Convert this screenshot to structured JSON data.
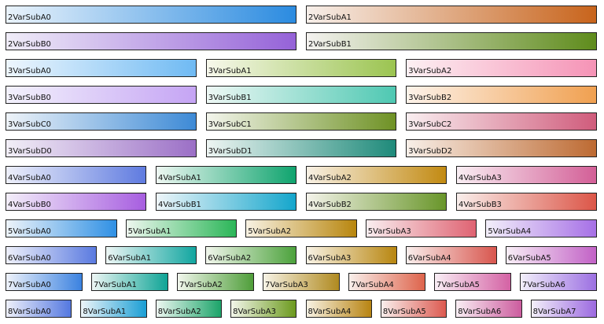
{
  "colormaps": [
    {
      "group": 2,
      "rows": [
        {
          "row": "A",
          "items": [
            {
              "label": "2VarSubA0",
              "colors": [
                "#eaf3fb",
                "#2b8be0"
              ]
            },
            {
              "label": "2VarSubA1",
              "colors": [
                "#f7efea",
                "#c8641c"
              ]
            }
          ]
        },
        {
          "row": "B",
          "items": [
            {
              "label": "2VarSubB0",
              "colors": [
                "#f0edf8",
                "#9562d8"
              ]
            },
            {
              "label": "2VarSubB1",
              "colors": [
                "#f4f2f0",
                "#5f8c1c"
              ]
            }
          ]
        }
      ]
    },
    {
      "group": 3,
      "rows": [
        {
          "row": "A",
          "items": [
            {
              "label": "3VarSubA0",
              "colors": [
                "#eef6fd",
                "#6fbaf3"
              ]
            },
            {
              "label": "3VarSubA1",
              "colors": [
                "#f7f8ec",
                "#9bc450"
              ]
            },
            {
              "label": "3VarSubA2",
              "colors": [
                "#fdf0f3",
                "#f593b6"
              ]
            }
          ]
        },
        {
          "row": "B",
          "items": [
            {
              "label": "3VarSubB0",
              "colors": [
                "#f3f2fc",
                "#c5a4f4"
              ]
            },
            {
              "label": "3VarSubB1",
              "colors": [
                "#eef8f5",
                "#4ec8b2"
              ]
            },
            {
              "label": "3VarSubB2",
              "colors": [
                "#fdf3ea",
                "#f0a050"
              ]
            }
          ]
        },
        {
          "row": "C",
          "items": [
            {
              "label": "3VarSubC0",
              "colors": [
                "#eef3f8",
                "#3d8ad6"
              ]
            },
            {
              "label": "3VarSubC1",
              "colors": [
                "#f3f5ec",
                "#6f9225"
              ]
            },
            {
              "label": "3VarSubC2",
              "colors": [
                "#f9eef0",
                "#d05c7c"
              ]
            }
          ]
        },
        {
          "row": "D",
          "items": [
            {
              "label": "3VarSubD0",
              "colors": [
                "#f2eff7",
                "#9b6fc6"
              ]
            },
            {
              "label": "3VarSubD1",
              "colors": [
                "#eef5f3",
                "#1e8a7a"
              ]
            },
            {
              "label": "3VarSubD2",
              "colors": [
                "#f8efe8",
                "#bd6a32"
              ]
            }
          ]
        }
      ]
    },
    {
      "group": 4,
      "rows": [
        {
          "row": "A",
          "items": [
            {
              "label": "4VarSubA0",
              "colors": [
                "#eef0fa",
                "#5f7be0"
              ]
            },
            {
              "label": "4VarSubA1",
              "colors": [
                "#eef7f2",
                "#0fa46e"
              ]
            },
            {
              "label": "4VarSubA2",
              "colors": [
                "#f8f1e5",
                "#c28a12"
              ]
            },
            {
              "label": "4VarSubA3",
              "colors": [
                "#f9eef3",
                "#d35f97"
              ]
            }
          ]
        },
        {
          "row": "B",
          "items": [
            {
              "label": "4VarSubB0",
              "colors": [
                "#f3eef9",
                "#a75ee0"
              ]
            },
            {
              "label": "4VarSubB1",
              "colors": [
                "#eef5f9",
                "#14a6cc"
              ]
            },
            {
              "label": "4VarSubB2",
              "colors": [
                "#f4f3ea",
                "#69962a"
              ]
            },
            {
              "label": "4VarSubB3",
              "colors": [
                "#f9eeeb",
                "#dc5648"
              ]
            }
          ]
        }
      ]
    },
    {
      "group": 5,
      "rows": [
        {
          "row": "A",
          "items": [
            {
              "label": "5VarSubA0",
              "colors": [
                "#eef4fa",
                "#2f90e4"
              ]
            },
            {
              "label": "5VarSubA1",
              "colors": [
                "#eef7ef",
                "#2bb658"
              ]
            },
            {
              "label": "5VarSubA2",
              "colors": [
                "#f8f2e3",
                "#b8860e"
              ]
            },
            {
              "label": "5VarSubA3",
              "colors": [
                "#f9eef0",
                "#df6372"
              ]
            },
            {
              "label": "5VarSubA4",
              "colors": [
                "#f3effa",
                "#a670e6"
              ]
            }
          ]
        }
      ]
    },
    {
      "group": 6,
      "rows": [
        {
          "row": "A",
          "items": [
            {
              "label": "6VarSubA0",
              "colors": [
                "#eef0fa",
                "#5a7ae0"
              ]
            },
            {
              "label": "6VarSubA1",
              "colors": [
                "#edf6f5",
                "#12a6a0"
              ]
            },
            {
              "label": "6VarSubA2",
              "colors": [
                "#f1f6ec",
                "#4ca23c"
              ]
            },
            {
              "label": "6VarSubA3",
              "colors": [
                "#f8f2e4",
                "#b88610"
              ]
            },
            {
              "label": "6VarSubA4",
              "colors": [
                "#f9eeec",
                "#d8564e"
              ]
            },
            {
              "label": "6VarSubA5",
              "colors": [
                "#f8eef6",
                "#c262c6"
              ]
            }
          ]
        }
      ]
    },
    {
      "group": 7,
      "rows": [
        {
          "row": "A",
          "items": [
            {
              "label": "7VarSubA0",
              "colors": [
                "#eef2fa",
                "#3b82e0"
              ]
            },
            {
              "label": "7VarSubA1",
              "colors": [
                "#edf6f4",
                "#0fa496"
              ]
            },
            {
              "label": "7VarSubA2",
              "colors": [
                "#f1f6ec",
                "#4f9e3a"
              ]
            },
            {
              "label": "7VarSubA3",
              "colors": [
                "#f7f3e6",
                "#b08a20"
              ]
            },
            {
              "label": "7VarSubA4",
              "colors": [
                "#f9efeb",
                "#de644c"
              ]
            },
            {
              "label": "7VarSubA5",
              "colors": [
                "#f9eef5",
                "#d462a4"
              ]
            },
            {
              "label": "7VarSubA6",
              "colors": [
                "#f2effa",
                "#9c70e2"
              ]
            }
          ]
        }
      ]
    },
    {
      "group": 8,
      "rows": [
        {
          "row": "A",
          "items": [
            {
              "label": "8VarSubA0",
              "colors": [
                "#eef0fa",
                "#5478e0"
              ]
            },
            {
              "label": "8VarSubA1",
              "colors": [
                "#edf5f9",
                "#1a9ed4"
              ]
            },
            {
              "label": "8VarSubA2",
              "colors": [
                "#edf7f1",
                "#1ca46a"
              ]
            },
            {
              "label": "8VarSubA3",
              "colors": [
                "#f3f6ea",
                "#6c9a1e"
              ]
            },
            {
              "label": "8VarSubA4",
              "colors": [
                "#f8f2e3",
                "#b88412"
              ]
            },
            {
              "label": "8VarSubA5",
              "colors": [
                "#f9eeec",
                "#dc5a50"
              ]
            },
            {
              "label": "8VarSubA6",
              "colors": [
                "#f9eef4",
                "#cc5c9e"
              ]
            },
            {
              "label": "8VarSubA7",
              "colors": [
                "#f3effa",
                "#9c6ae0"
              ]
            }
          ]
        }
      ]
    }
  ]
}
